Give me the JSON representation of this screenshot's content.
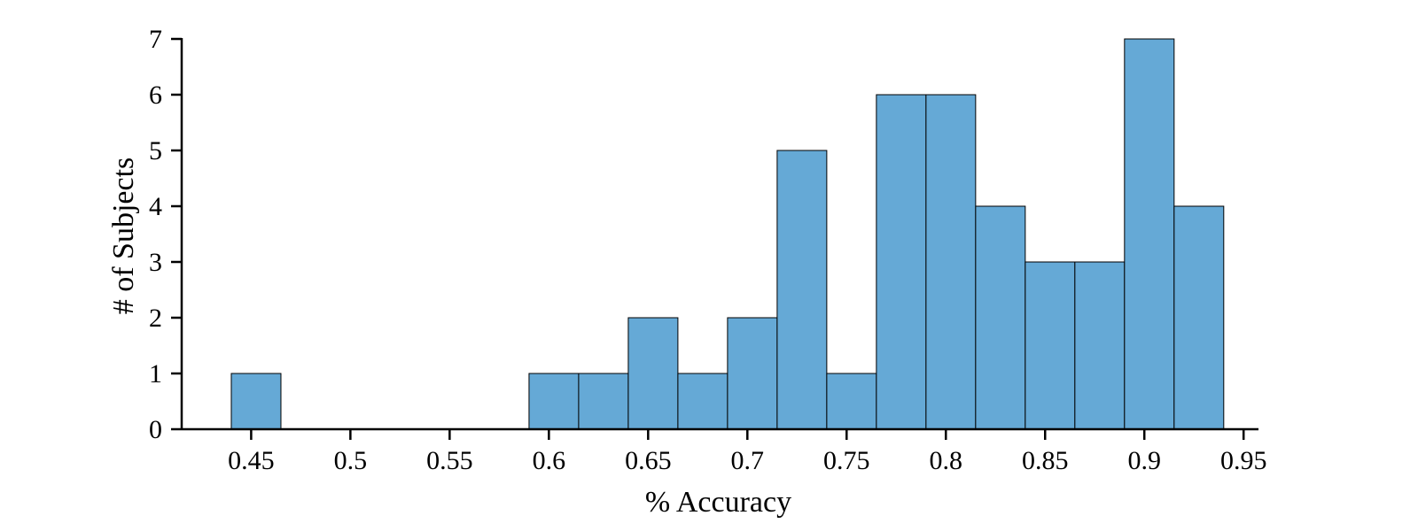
{
  "chart_data": {
    "type": "bar",
    "xlabel": "% Accuracy",
    "ylabel": "# of Subjects",
    "xlim": [
      0.415,
      0.9575
    ],
    "ylim": [
      0,
      7
    ],
    "grid": false,
    "bar_color": "#65a9d6",
    "bins": [
      {
        "x0": 0.44,
        "x1": 0.465,
        "count": 1
      },
      {
        "x0": 0.59,
        "x1": 0.615,
        "count": 1
      },
      {
        "x0": 0.615,
        "x1": 0.64,
        "count": 1
      },
      {
        "x0": 0.64,
        "x1": 0.665,
        "count": 2
      },
      {
        "x0": 0.665,
        "x1": 0.69,
        "count": 1
      },
      {
        "x0": 0.69,
        "x1": 0.715,
        "count": 2
      },
      {
        "x0": 0.715,
        "x1": 0.74,
        "count": 5
      },
      {
        "x0": 0.74,
        "x1": 0.765,
        "count": 1
      },
      {
        "x0": 0.765,
        "x1": 0.79,
        "count": 6
      },
      {
        "x0": 0.79,
        "x1": 0.815,
        "count": 6
      },
      {
        "x0": 0.815,
        "x1": 0.84,
        "count": 4
      },
      {
        "x0": 0.84,
        "x1": 0.865,
        "count": 3
      },
      {
        "x0": 0.865,
        "x1": 0.89,
        "count": 3
      },
      {
        "x0": 0.89,
        "x1": 0.915,
        "count": 7
      },
      {
        "x0": 0.915,
        "x1": 0.94,
        "count": 4
      }
    ],
    "x_ticks": [
      {
        "value": 0.45,
        "label": "0.45"
      },
      {
        "value": 0.5,
        "label": "0.5"
      },
      {
        "value": 0.55,
        "label": "0.55"
      },
      {
        "value": 0.6,
        "label": "0.6"
      },
      {
        "value": 0.65,
        "label": "0.65"
      },
      {
        "value": 0.7,
        "label": "0.7"
      },
      {
        "value": 0.75,
        "label": "0.75"
      },
      {
        "value": 0.8,
        "label": "0.8"
      },
      {
        "value": 0.85,
        "label": "0.85"
      },
      {
        "value": 0.9,
        "label": "0.9"
      },
      {
        "value": 0.95,
        "label": "0.95"
      }
    ],
    "y_ticks": [
      {
        "value": 0,
        "label": "0"
      },
      {
        "value": 1,
        "label": "1"
      },
      {
        "value": 2,
        "label": "2"
      },
      {
        "value": 3,
        "label": "3"
      },
      {
        "value": 4,
        "label": "4"
      },
      {
        "value": 5,
        "label": "5"
      },
      {
        "value": 6,
        "label": "6"
      },
      {
        "value": 7,
        "label": "7"
      }
    ]
  }
}
